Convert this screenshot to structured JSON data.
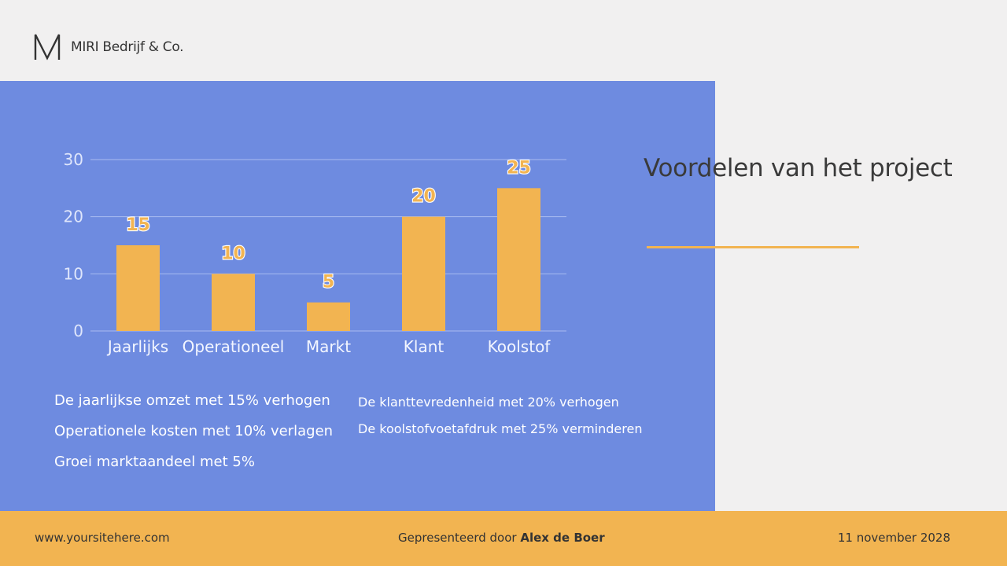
{
  "header": {
    "brand": "MIRI Bedrijf & Co.",
    "logo_icon": "m-monogram-icon"
  },
  "title": "Voordelen van het project",
  "colors": {
    "panel": "#6e8be0",
    "accent": "#f2b451",
    "background": "#f1f0f0",
    "text": "#333333"
  },
  "chart_data": {
    "type": "bar",
    "categories": [
      "Jaarlijks",
      "Operationeel",
      "Markt",
      "Klant",
      "Koolstof"
    ],
    "values": [
      15,
      10,
      5,
      20,
      25
    ],
    "data_labels": [
      "15",
      "10",
      "5",
      "20",
      "25"
    ],
    "title": "",
    "xlabel": "",
    "ylabel": "",
    "ylim": [
      0,
      30
    ],
    "yticks": [
      0,
      10,
      20,
      30
    ],
    "grid": true,
    "legend": "none",
    "bar_color": "#f2b451"
  },
  "goals_left": [
    "De jaarlijkse omzet met 15% verhogen",
    "Operationele kosten met 10% verlagen",
    "Groei marktaandeel met 5%"
  ],
  "goals_right": [
    "De klanttevredenheid met 20% verhogen",
    "De koolstofvoetafdruk met 25% verminderen"
  ],
  "footer": {
    "url": "www.yoursitehere.com",
    "presented_prefix": "Gepresenteerd door",
    "presenter": "Alex de Boer",
    "date": "11 november 2028"
  }
}
